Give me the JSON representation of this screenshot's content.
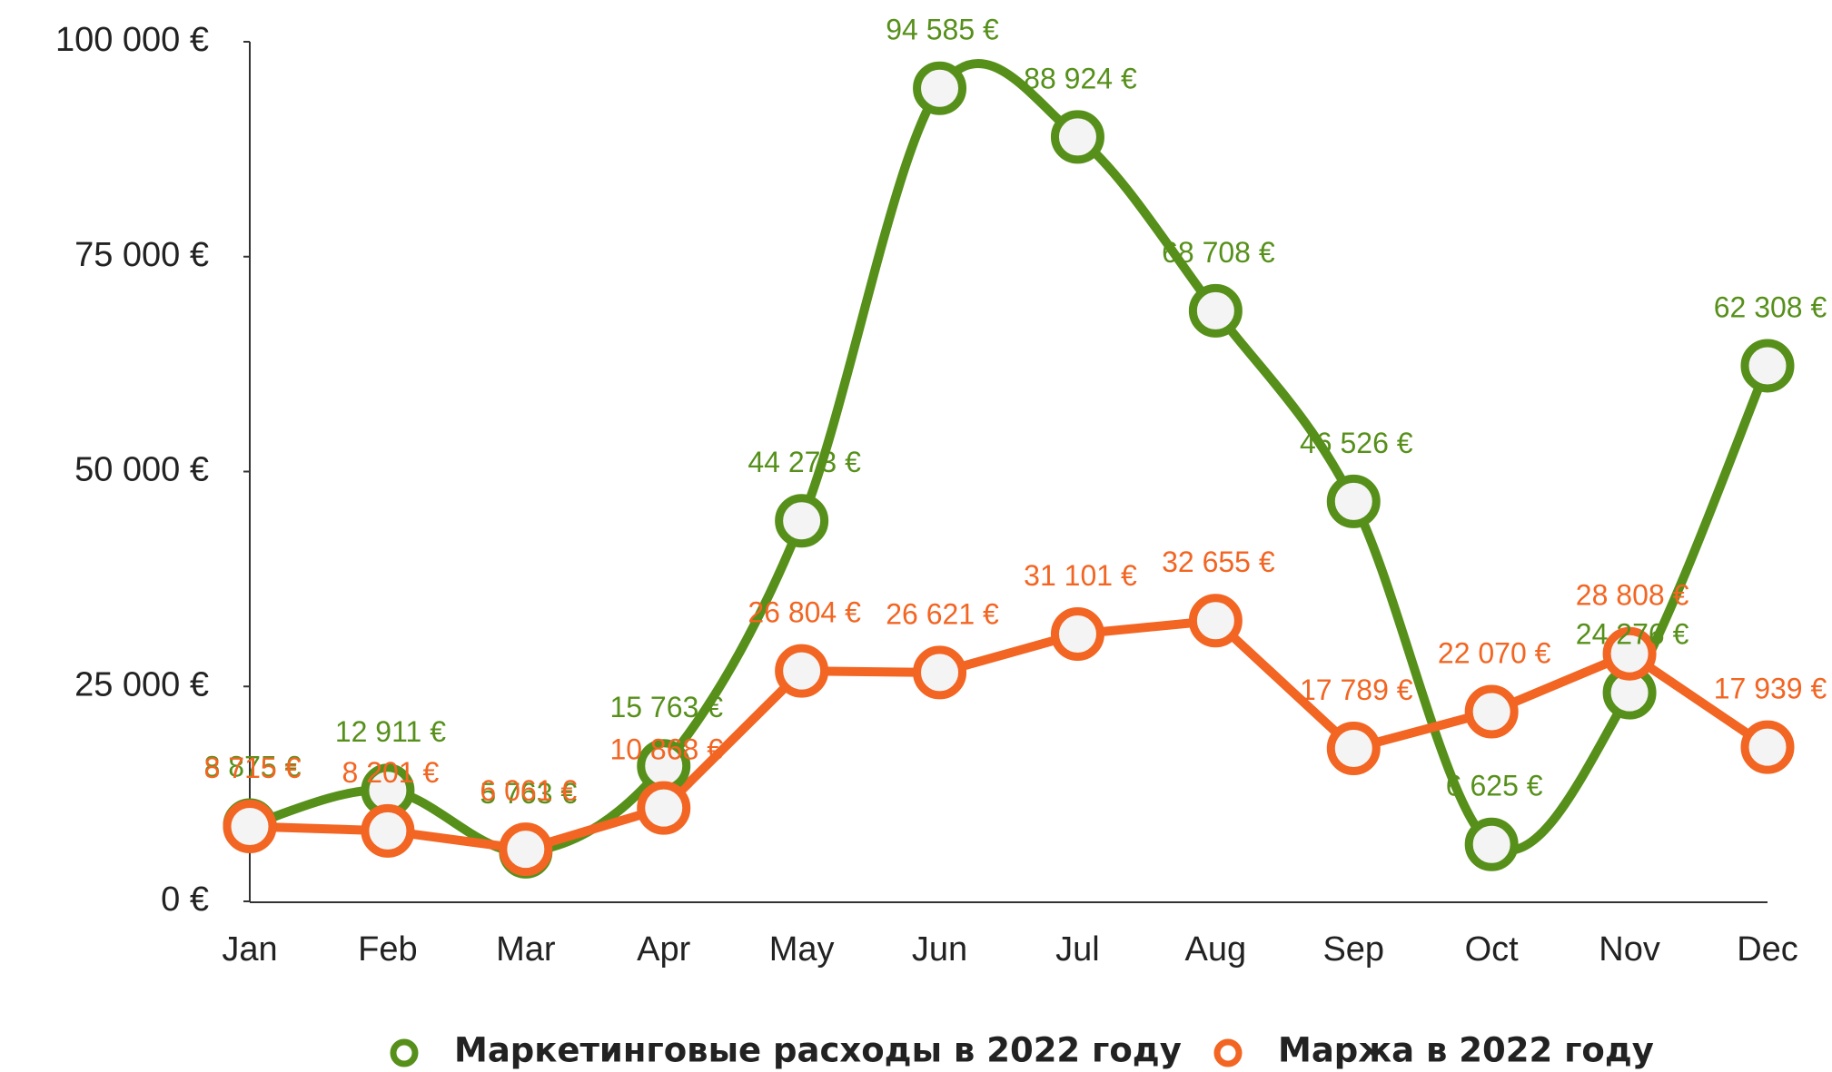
{
  "chart_data": {
    "type": "line",
    "categories": [
      "Jan",
      "Feb",
      "Mar",
      "Apr",
      "May",
      "Jun",
      "Jul",
      "Aug",
      "Sep",
      "Oct",
      "Nov",
      "Dec"
    ],
    "series": [
      {
        "name": "Маркетинговые расходы в 2022 году",
        "color": "#56901a",
        "smooth": true,
        "values": [
          8875,
          12911,
          5763,
          15763,
          44273,
          94585,
          88924,
          68708,
          46526,
          6625,
          24276,
          62308
        ],
        "value_labels": [
          "8 875 €",
          "12 911 €",
          "5 763 €",
          "15 763 €",
          "44 273 €",
          "94 585 €",
          "88 924 €",
          "68 708 €",
          "46 526 €",
          "6 625 €",
          "24 276 €",
          "62 308 €"
        ]
      },
      {
        "name": "Маржа в 2022 году",
        "color": "#f26522",
        "smooth": false,
        "values": [
          8715,
          8201,
          6061,
          10868,
          26804,
          26621,
          31101,
          32655,
          17789,
          22070,
          28808,
          17939
        ],
        "value_labels": [
          "8 715 €",
          "8 201 €",
          "6 061 €",
          "10 868 €",
          "26 804 €",
          "26 621 €",
          "31 101 €",
          "32 655 €",
          "17 789 €",
          "22 070 €",
          "28 808 €",
          "17 939 €"
        ]
      }
    ],
    "ylim": [
      0,
      100000
    ],
    "yticks": [
      {
        "value": 0,
        "label": "0 €"
      },
      {
        "value": 25000,
        "label": "25 000 €"
      },
      {
        "value": 50000,
        "label": "50 000 €"
      },
      {
        "value": 75000,
        "label": "75 000 €"
      },
      {
        "value": 100000,
        "label": "100 000 €"
      }
    ],
    "grid": false,
    "legend": "bottom"
  }
}
